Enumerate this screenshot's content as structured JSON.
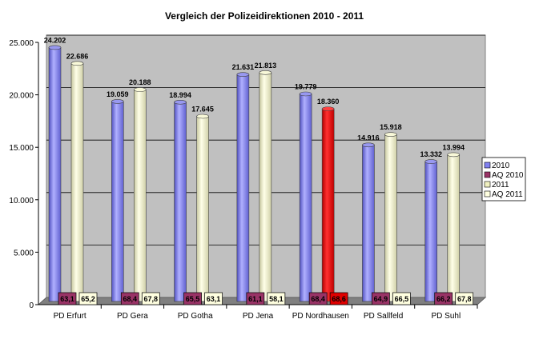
{
  "chart_data": {
    "type": "bar",
    "title": "Vergleich der Polizeidirektionen 2010 - 2011",
    "xlabel": "",
    "ylabel": "",
    "ylim": [
      0,
      25000
    ],
    "yticks": [
      "0",
      "5.000",
      "10.000",
      "15.000",
      "20.000",
      "25.000"
    ],
    "grid": true,
    "legend_position": "right",
    "categories": [
      "PD Erfurt",
      "PD Gera",
      "PD Gotha",
      "PD Jena",
      "PD Nordhausen",
      "PD Sallfeld",
      "PD Suhl"
    ],
    "series": [
      {
        "name": "2010",
        "color": "#8080f0",
        "values": [
          24202,
          19059,
          18994,
          21631,
          19779,
          14916,
          13332
        ],
        "labels": [
          "24.202",
          "19.059",
          "18.994",
          "21.631",
          "19.779",
          "14.916",
          "13.332"
        ]
      },
      {
        "name": "AQ 2010",
        "color": "#993366",
        "values": [
          63.1,
          68.4,
          65.5,
          61.1,
          68.4,
          64.9,
          66.2
        ],
        "labels": [
          "63,1",
          "68,4",
          "65,5",
          "61,1",
          "68,4",
          "64,9",
          "66,2"
        ]
      },
      {
        "name": "2011",
        "color": "#f0f0c0",
        "values": [
          22686,
          20188,
          17645,
          21813,
          18360,
          15918,
          13994
        ],
        "labels": [
          "22.686",
          "20.188",
          "17.645",
          "21.813",
          "18.360",
          "15.918",
          "13.994"
        ],
        "highlight": {
          "index": 4,
          "color": "#e00000"
        }
      },
      {
        "name": "AQ 2011",
        "color": "#ffffe0",
        "values": [
          65.2,
          67.8,
          63.1,
          58.1,
          68.6,
          66.5,
          67.8
        ],
        "labels": [
          "65,2",
          "67,8",
          "63,1",
          "58,1",
          "68,6",
          "66,5",
          "67,8"
        ],
        "highlight": {
          "index": 4,
          "color": "#e00000"
        }
      }
    ]
  }
}
